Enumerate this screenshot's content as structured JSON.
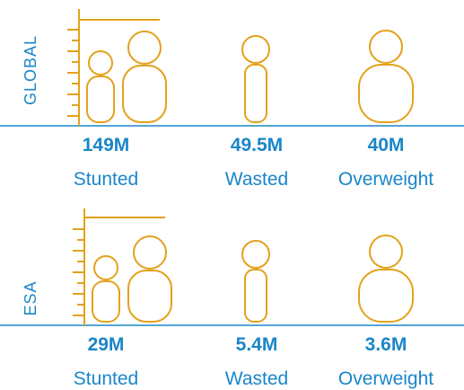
{
  "panels": [
    {
      "region": "GLOBAL",
      "stats": [
        {
          "value": "149M",
          "label": "Stunted"
        },
        {
          "value": "49.5M",
          "label": "Wasted"
        },
        {
          "value": "40M",
          "label": "Overweight"
        }
      ]
    },
    {
      "region": "ESA",
      "stats": [
        {
          "value": "29M",
          "label": "Stunted"
        },
        {
          "value": "5.4M",
          "label": "Wasted"
        },
        {
          "value": "3.6M",
          "label": "Overweight"
        }
      ]
    }
  ]
}
